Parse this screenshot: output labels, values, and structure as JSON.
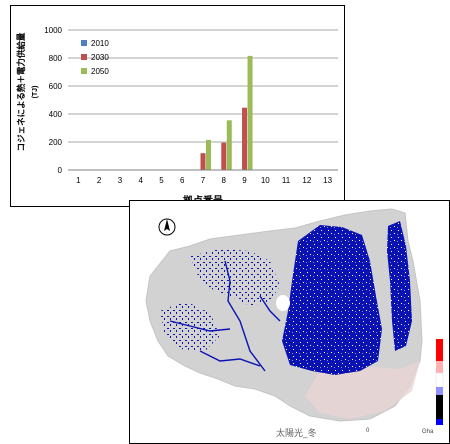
{
  "chart_data": {
    "type": "bar",
    "title": "",
    "xlabel": "拠点番号",
    "ylabel": "コジェネによる熱＋電力供給量",
    "ylabel_unit": "(TJ)",
    "categories": [
      "1",
      "2",
      "3",
      "4",
      "5",
      "6",
      "7",
      "8",
      "9",
      "10",
      "11",
      "12",
      "13"
    ],
    "ylim": [
      0,
      1000
    ],
    "yticks": [
      0,
      200,
      400,
      600,
      800,
      1000
    ],
    "grid": true,
    "legend_position": "upper-left",
    "series": [
      {
        "name": "2010",
        "color": "#4f81bd",
        "values": [
          0,
          0,
          0,
          0,
          0,
          0,
          0,
          0,
          0,
          0,
          0,
          0,
          0
        ]
      },
      {
        "name": "2030",
        "color": "#c0504d",
        "values": [
          0,
          0,
          0,
          0,
          0,
          0,
          120,
          195,
          445,
          0,
          0,
          0,
          0
        ]
      },
      {
        "name": "2050",
        "color": "#9bbb59",
        "values": [
          0,
          0,
          0,
          0,
          0,
          0,
          215,
          355,
          815,
          0,
          0,
          0,
          0
        ]
      }
    ]
  },
  "map": {
    "caption": "太陽光_冬",
    "north_symbol": "N",
    "scale_mark": "0",
    "scale_unit": "Gha",
    "land_color": "#d2d2d2",
    "data_color": "#0a12b4",
    "colorbar_colors": [
      "#ff0000",
      "#ffffff",
      "#000000",
      "#0000ff"
    ]
  }
}
